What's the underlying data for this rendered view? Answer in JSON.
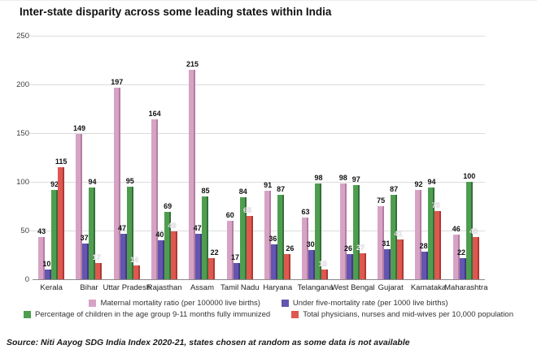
{
  "title": "Inter-state disparity across some leading states within India",
  "source": "Source: Niti Aayog SDG India Index 2020-21, states chosen at random as some data is not available",
  "chart_data": {
    "type": "bar",
    "title": "Inter-state disparity across some leading states within India",
    "categories": [
      "Kerala",
      "Bihar",
      "Uttar Pradesh",
      "Rajasthan",
      "Assam",
      "Tamil Nadu",
      "Haryana",
      "Telangana",
      "West Bengal",
      "Gujarat",
      "Karnataka",
      "Maharashtra"
    ],
    "series": [
      {
        "name": "Maternal mortality ratio (per 100000 live births)",
        "color": "#d6a3c5",
        "values": [
          43,
          149,
          197,
          164,
          215,
          60,
          91,
          63,
          98,
          75,
          92,
          46
        ]
      },
      {
        "name": "Under five-mortality rate (per 1000 live births)",
        "color": "#6355b0",
        "values": [
          10,
          37,
          47,
          40,
          47,
          17,
          36,
          30,
          26,
          31,
          28,
          22
        ]
      },
      {
        "name": "Percentage of children in the age group 9-11 months fully immunized",
        "color": "#4f9e50",
        "values": [
          92,
          94,
          95,
          69,
          85,
          84,
          87,
          98,
          97,
          87,
          94,
          100
        ]
      },
      {
        "name": "Total physicians, nurses and mid-wives per 10,000 population",
        "color": "#df574f",
        "values": [
          115,
          17,
          14,
          49,
          22,
          65,
          26,
          10,
          27,
          41,
          70,
          43
        ]
      }
    ],
    "xlabel": "",
    "ylabel": "",
    "ylim": [
      0,
      250
    ],
    "yticks": [
      0,
      50,
      100,
      150,
      200,
      250
    ],
    "grid": true,
    "legend_position": "bottom"
  }
}
